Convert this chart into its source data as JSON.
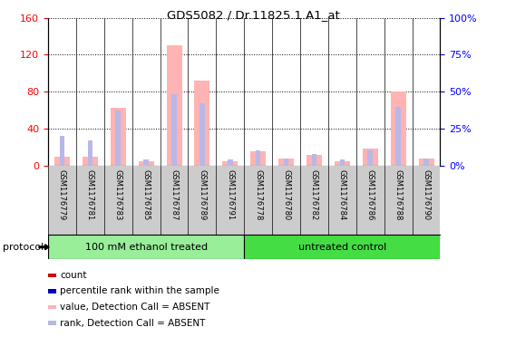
{
  "title": "GDS5082 / Dr.11825.1.A1_at",
  "samples": [
    "GSM1176779",
    "GSM1176781",
    "GSM1176783",
    "GSM1176785",
    "GSM1176787",
    "GSM1176789",
    "GSM1176791",
    "GSM1176778",
    "GSM1176780",
    "GSM1176782",
    "GSM1176784",
    "GSM1176786",
    "GSM1176788",
    "GSM1176790"
  ],
  "group1_count": 7,
  "group2_count": 7,
  "group1_label": "100 mM ethanol treated",
  "group2_label": "untreated control",
  "protocol_label": "protocol",
  "value_absent": [
    10,
    10,
    63,
    5,
    130,
    92,
    5,
    15,
    8,
    12,
    5,
    18,
    80,
    8
  ],
  "rank_absent": [
    20,
    17,
    37,
    4,
    48,
    42,
    4,
    10,
    5,
    8,
    4,
    10,
    40,
    5
  ],
  "ylim_left": [
    0,
    160
  ],
  "ylim_right": [
    0,
    100
  ],
  "yticks_left": [
    0,
    40,
    80,
    120,
    160
  ],
  "ytick_labels_left": [
    "0",
    "40",
    "80",
    "120",
    "160"
  ],
  "yticks_right": [
    0,
    25,
    50,
    75,
    100
  ],
  "ytick_labels_right": [
    "0%",
    "25%",
    "50%",
    "75%",
    "100%"
  ],
  "color_value_absent": "#FFB3B3",
  "color_rank_absent": "#B8B8E8",
  "color_count_present": "#CC0000",
  "color_rank_present": "#0000BB",
  "group1_color": "#99EE99",
  "group2_color": "#44DD44",
  "col_bg": "#CCCCCC",
  "plot_bg": "#FFFFFF"
}
